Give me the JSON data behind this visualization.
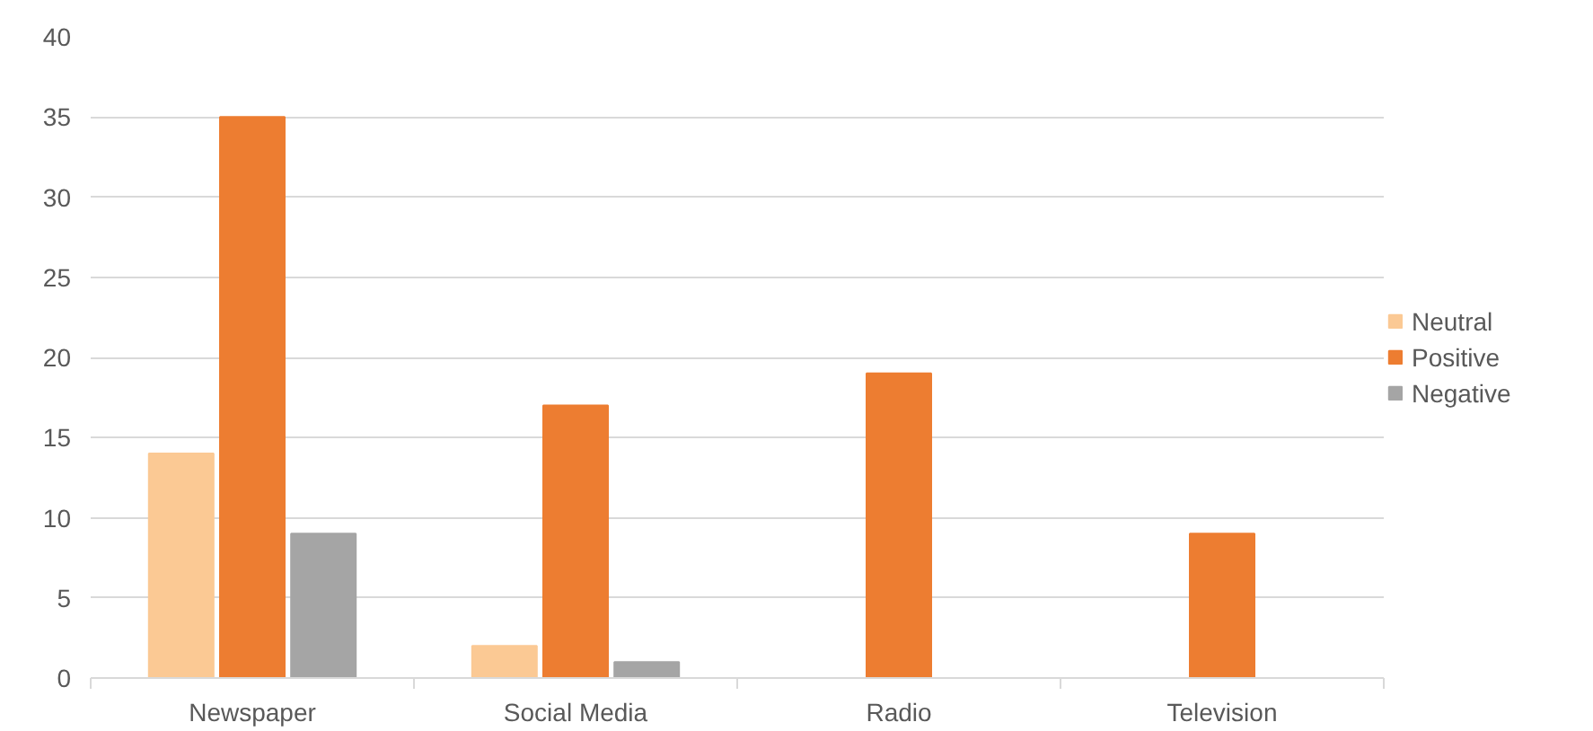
{
  "chart_data": {
    "type": "bar",
    "categories": [
      "Newspaper",
      "Social Media",
      "Radio",
      "Television"
    ],
    "series": [
      {
        "name": "Neutral",
        "color": "#fbc994",
        "values": [
          14,
          2,
          null,
          null
        ]
      },
      {
        "name": "Positive",
        "color": "#ed7d31",
        "values": [
          35,
          17,
          19,
          9
        ]
      },
      {
        "name": "Negative",
        "color": "#a5a5a5",
        "values": [
          9,
          1,
          null,
          null
        ]
      }
    ],
    "ylim": [
      0,
      40
    ],
    "yticks": [
      0,
      5,
      10,
      15,
      20,
      25,
      30,
      35,
      40
    ],
    "grid": "y",
    "legend": "right"
  }
}
